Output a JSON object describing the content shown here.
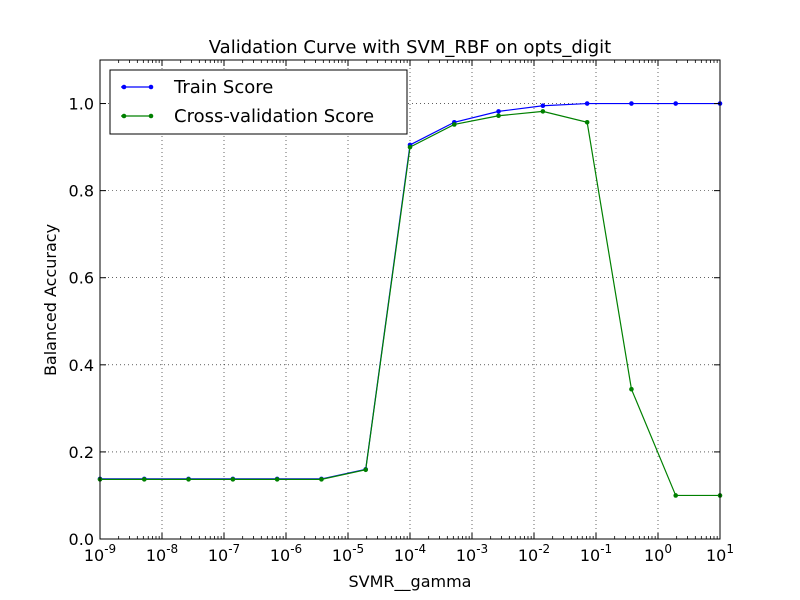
{
  "chart_data": {
    "type": "line",
    "title": "Validation Curve with SVM_RBF on opts_digit",
    "xlabel": "SVMR__gamma",
    "ylabel": "Balanced Accuracy",
    "xscale": "log",
    "xlim": [
      1e-09,
      10
    ],
    "ylim": [
      0,
      1.1
    ],
    "grid": true,
    "legend_position": "top-left",
    "x_ticks": [
      {
        "base": "10",
        "exp": "-9"
      },
      {
        "base": "10",
        "exp": "-8"
      },
      {
        "base": "10",
        "exp": "-7"
      },
      {
        "base": "10",
        "exp": "-6"
      },
      {
        "base": "10",
        "exp": "-5"
      },
      {
        "base": "10",
        "exp": "-4"
      },
      {
        "base": "10",
        "exp": "-3"
      },
      {
        "base": "10",
        "exp": "-2"
      },
      {
        "base": "10",
        "exp": "-1"
      },
      {
        "base": "10",
        "exp": "0"
      },
      {
        "base": "10",
        "exp": "1"
      }
    ],
    "y_ticks": [
      "0.0",
      "0.2",
      "0.4",
      "0.6",
      "0.8",
      "1.0"
    ],
    "x": [
      1e-09,
      5.18e-09,
      2.68e-08,
      1.39e-07,
      7.2e-07,
      3.73e-06,
      1.93e-05,
      0.0001,
      0.000518,
      0.00268,
      0.0139,
      0.072,
      0.373,
      1.93,
      10
    ],
    "series": [
      {
        "name": "Train Score",
        "color": "#0000ff",
        "values": [
          0.138,
          0.138,
          0.138,
          0.138,
          0.138,
          0.138,
          0.16,
          0.905,
          0.957,
          0.982,
          0.995,
          1.0,
          1.0,
          1.0,
          1.0
        ]
      },
      {
        "name": "Cross-validation Score",
        "color": "#008000",
        "values": [
          0.137,
          0.137,
          0.137,
          0.137,
          0.137,
          0.137,
          0.159,
          0.9,
          0.952,
          0.972,
          0.982,
          0.957,
          0.344,
          0.1,
          0.1
        ]
      }
    ]
  }
}
